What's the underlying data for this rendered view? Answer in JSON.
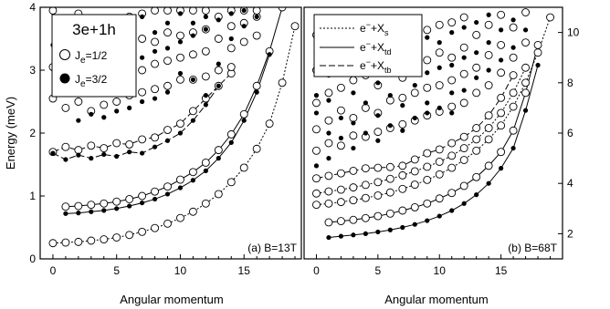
{
  "figure": {
    "ylabel": "Energy (meV)",
    "legend_title": "3e+1h"
  },
  "chart_data": [
    {
      "type": "scatter",
      "annotation": "(a) B=13T",
      "xlabel": "Angular momentum",
      "ylabel": "Energy (meV)",
      "xlim": [
        -1,
        19.5
      ],
      "ylim": [
        0,
        4
      ],
      "xticks": [
        "0",
        "5",
        "10",
        "15"
      ],
      "yticks": [
        "0",
        "1",
        "2",
        "3",
        "4"
      ],
      "legend": {
        "title": "3e+1h",
        "entries": [
          {
            "label": "J",
            "sub": "e",
            "suffix": "=1/2",
            "marker": "open"
          },
          {
            "label": "J",
            "sub": "e",
            "suffix": "=3/2",
            "marker": "filled"
          }
        ]
      },
      "series": [
        {
          "style": "dashed",
          "marker": "open",
          "x": [
            0,
            1,
            2,
            3,
            4,
            5,
            6,
            7,
            8,
            9,
            10,
            11,
            12,
            13,
            14,
            15,
            16,
            17,
            18,
            19
          ],
          "y": [
            0.25,
            0.26,
            0.27,
            0.29,
            0.31,
            0.34,
            0.38,
            0.43,
            0.49,
            0.56,
            0.65,
            0.75,
            0.88,
            1.03,
            1.22,
            1.45,
            1.75,
            2.15,
            2.8,
            3.7
          ]
        },
        {
          "style": "solid",
          "marker": "open",
          "x": [
            1,
            2,
            3,
            4,
            5,
            6,
            7,
            8,
            9,
            10,
            11,
            12,
            13,
            14,
            15,
            16,
            17,
            18
          ],
          "y": [
            0.83,
            0.84,
            0.86,
            0.88,
            0.91,
            0.95,
            1.0,
            1.07,
            1.15,
            1.26,
            1.38,
            1.53,
            1.73,
            1.98,
            2.3,
            2.75,
            3.3,
            4.0
          ]
        },
        {
          "style": "solid",
          "marker": "filled",
          "x": [
            1,
            2,
            3,
            4,
            5,
            6,
            7,
            8,
            9,
            10,
            11,
            12,
            13,
            14,
            15,
            16,
            17
          ],
          "y": [
            0.72,
            0.73,
            0.75,
            0.77,
            0.8,
            0.84,
            0.89,
            0.95,
            1.03,
            1.13,
            1.25,
            1.4,
            1.6,
            1.85,
            2.2,
            2.65,
            3.25
          ]
        },
        {
          "style": "longdash",
          "marker": "open",
          "x": [
            0,
            1,
            2,
            3,
            4,
            5,
            6,
            7,
            8,
            9,
            10,
            11,
            12,
            13,
            14
          ],
          "y": [
            1.7,
            1.78,
            1.73,
            1.8,
            1.76,
            1.84,
            1.82,
            1.9,
            1.93,
            2.05,
            2.15,
            2.35,
            2.55,
            2.75,
            2.95
          ]
        },
        {
          "style": "longdash",
          "marker": "filled",
          "x": [
            0,
            1,
            2,
            3,
            4,
            5,
            6,
            7,
            8,
            9,
            10,
            11,
            12,
            13
          ],
          "y": [
            1.68,
            1.58,
            1.65,
            1.6,
            1.66,
            1.63,
            1.7,
            1.68,
            1.78,
            1.88,
            2.0,
            2.2,
            2.45,
            2.75
          ]
        },
        {
          "style": "none",
          "marker": "open",
          "x": [
            0,
            0,
            0,
            1,
            1,
            1,
            1,
            2,
            2,
            2,
            2,
            3,
            3,
            3,
            3,
            4,
            4,
            4,
            4,
            5,
            5,
            5,
            5,
            6,
            6,
            6,
            6,
            7,
            7,
            7,
            7,
            8,
            8,
            8,
            8,
            9,
            9,
            9,
            9,
            10,
            10,
            10,
            10,
            11,
            11,
            11,
            11,
            12,
            12,
            12,
            12,
            13,
            13,
            13,
            14,
            14,
            14,
            14,
            15,
            15,
            15,
            16,
            16,
            16
          ],
          "y": [
            2.55,
            3.05,
            3.95,
            2.4,
            2.85,
            3.25,
            3.7,
            2.5,
            2.95,
            3.45,
            3.9,
            2.35,
            2.75,
            3.2,
            3.6,
            2.45,
            2.9,
            3.35,
            3.8,
            2.5,
            2.8,
            3.2,
            3.7,
            2.6,
            2.95,
            3.3,
            3.85,
            2.65,
            3.0,
            3.5,
            3.9,
            2.7,
            3.1,
            3.45,
            3.95,
            2.75,
            3.15,
            3.6,
            3.95,
            2.85,
            3.2,
            3.55,
            3.95,
            2.85,
            3.25,
            3.6,
            3.95,
            2.9,
            3.3,
            3.65,
            3.95,
            3.0,
            3.5,
            3.85,
            3.05,
            3.35,
            3.7,
            3.95,
            3.45,
            3.75,
            3.95,
            3.55,
            3.85,
            3.95
          ]
        },
        {
          "style": "none",
          "marker": "filled",
          "x": [
            0,
            1,
            1,
            2,
            2,
            2,
            3,
            3,
            3,
            4,
            4,
            4,
            5,
            5,
            5,
            6,
            6,
            6,
            7,
            7,
            7,
            8,
            8,
            8,
            9,
            9,
            9,
            10,
            10,
            10,
            11,
            11,
            11,
            12,
            12,
            12,
            13,
            13,
            14,
            14,
            15,
            15,
            16
          ],
          "y": [
            3.4,
            2.75,
            3.6,
            2.2,
            2.85,
            3.65,
            2.3,
            2.7,
            3.75,
            2.25,
            3.05,
            3.75,
            2.35,
            2.95,
            3.85,
            2.4,
            3.1,
            3.7,
            2.5,
            3.2,
            3.85,
            2.55,
            3.3,
            3.6,
            2.65,
            3.35,
            3.75,
            2.95,
            3.45,
            3.9,
            2.85,
            3.55,
            3.75,
            2.6,
            3.65,
            3.85,
            3.1,
            3.8,
            3.5,
            3.9,
            3.7,
            3.95,
            3.85
          ]
        }
      ]
    },
    {
      "type": "scatter",
      "annotation": "(b) B=68T",
      "xlabel": "Angular momentum",
      "xlim": [
        -1,
        20
      ],
      "ylim": [
        1,
        11
      ],
      "xticks": [
        "0",
        "5",
        "10",
        "15"
      ],
      "yticks": [
        "2",
        "4",
        "6",
        "8",
        "10"
      ],
      "legend": {
        "entries": [
          {
            "style": "dashed",
            "label": "e",
            "sup": "−",
            "mid": "+X",
            "sub": "s"
          },
          {
            "style": "solid",
            "label": "e",
            "sup": "−",
            "mid": "+X",
            "sub": "td"
          },
          {
            "style": "longdash",
            "label": "e",
            "sup": "−",
            "mid": "+X",
            "sub": "tb"
          }
        ]
      },
      "series": [
        {
          "style": "solid",
          "marker": "filled",
          "x": [
            1,
            2,
            3,
            4,
            5,
            6,
            7,
            8,
            9,
            10,
            11,
            12,
            13,
            14,
            15,
            16,
            17,
            18
          ],
          "y": [
            1.85,
            1.9,
            1.95,
            2.0,
            2.07,
            2.15,
            2.25,
            2.37,
            2.52,
            2.7,
            2.92,
            3.2,
            3.55,
            4.0,
            4.6,
            5.4,
            6.9,
            8.7
          ]
        },
        {
          "style": "solid",
          "marker": "open",
          "x": [
            1,
            2,
            3,
            4,
            5,
            6,
            7,
            8,
            9,
            10,
            11,
            12,
            13,
            14,
            15,
            16,
            17,
            18
          ],
          "y": [
            2.45,
            2.5,
            2.55,
            2.62,
            2.7,
            2.8,
            2.92,
            3.05,
            3.2,
            3.4,
            3.62,
            3.9,
            4.25,
            4.7,
            5.25,
            6.1,
            7.6,
            9.5
          ]
        },
        {
          "style": "dashed",
          "marker": "open",
          "x": [
            0,
            1,
            2,
            3,
            4,
            5,
            6,
            7,
            8,
            9,
            10,
            11,
            12,
            13,
            14,
            15,
            16,
            17,
            18,
            19
          ],
          "y": [
            3.15,
            3.2,
            3.26,
            3.33,
            3.42,
            3.52,
            3.64,
            3.78,
            3.95,
            4.14,
            4.36,
            4.62,
            4.93,
            5.3,
            5.75,
            6.3,
            7.05,
            8.0,
            9.2,
            10.6
          ]
        },
        {
          "style": "dashed",
          "marker": "open",
          "x": [
            0,
            1,
            2,
            3,
            4,
            5,
            6,
            7,
            8,
            9,
            10,
            11,
            12,
            13,
            14,
            15,
            16,
            17
          ],
          "y": [
            3.6,
            3.68,
            3.75,
            3.84,
            3.94,
            4.05,
            4.18,
            4.32,
            4.48,
            4.66,
            4.86,
            5.1,
            5.4,
            5.75,
            6.2,
            6.8,
            7.6,
            8.6
          ]
        },
        {
          "style": "longdash",
          "marker": "open",
          "x": [
            0,
            1,
            2,
            3,
            4,
            5,
            6,
            7,
            8,
            9,
            10,
            11,
            12,
            13,
            14,
            15,
            16
          ],
          "y": [
            4.2,
            4.3,
            4.4,
            4.5,
            4.6,
            4.62,
            4.65,
            4.7,
            4.95,
            5.2,
            5.35,
            5.6,
            5.85,
            6.2,
            6.7,
            7.4,
            8.3
          ]
        },
        {
          "style": "none",
          "marker": "open",
          "x": [
            0,
            0,
            0,
            0,
            0,
            1,
            1,
            1,
            1,
            1,
            2,
            2,
            2,
            2,
            3,
            3,
            3,
            3,
            4,
            4,
            4,
            4,
            5,
            5,
            5,
            5,
            6,
            6,
            6,
            6,
            7,
            7,
            7,
            7,
            8,
            8,
            8,
            8,
            9,
            9,
            9,
            9,
            10,
            10,
            10,
            10,
            11,
            11,
            11,
            11,
            12,
            12,
            12,
            12,
            13,
            13,
            13,
            14,
            14,
            14,
            15,
            15,
            15,
            16,
            16,
            17,
            17
          ],
          "y": [
            5.3,
            6.15,
            7.2,
            8.5,
            9.9,
            5.6,
            6.5,
            7.6,
            8.8,
            10.0,
            5.5,
            6.9,
            7.8,
            9.5,
            5.9,
            6.6,
            8.1,
            9.3,
            5.85,
            7.0,
            8.3,
            9.6,
            6.05,
            6.8,
            7.9,
            9.4,
            6.2,
            7.3,
            8.5,
            9.8,
            6.35,
            7.4,
            8.2,
            9.6,
            6.5,
            7.6,
            8.7,
            10.0,
            6.7,
            7.8,
            8.9,
            10.1,
            6.85,
            7.9,
            9.2,
            10.3,
            7.05,
            8.1,
            9.0,
            10.4,
            7.2,
            8.35,
            9.4,
            10.6,
            7.6,
            8.6,
            9.9,
            7.9,
            9.1,
            10.3,
            8.4,
            9.5,
            10.7,
            9.0,
            10.2,
            9.6,
            10.8
          ]
        },
        {
          "style": "none",
          "marker": "filled",
          "x": [
            0,
            0,
            0,
            1,
            1,
            1,
            1,
            2,
            2,
            2,
            3,
            3,
            3,
            3,
            4,
            4,
            4,
            5,
            5,
            5,
            5,
            6,
            6,
            6,
            7,
            7,
            7,
            7,
            8,
            8,
            8,
            9,
            9,
            9,
            9,
            10,
            10,
            10,
            11,
            11,
            11,
            11,
            12,
            12,
            12,
            13,
            13,
            13,
            14,
            14,
            14,
            15,
            15,
            16,
            16,
            17
          ],
          "y": [
            4.7,
            6.8,
            7.5,
            5.0,
            6.0,
            7.3,
            8.3,
            5.8,
            6.6,
            8.6,
            5.4,
            6.4,
            7.6,
            9.3,
            6.0,
            7.2,
            8.8,
            5.7,
            6.7,
            8.0,
            9.2,
            6.3,
            7.5,
            8.9,
            6.1,
            7.1,
            8.5,
            9.6,
            6.6,
            7.9,
            9.3,
            6.8,
            7.2,
            8.4,
            9.8,
            7.0,
            8.6,
            9.6,
            6.8,
            7.6,
            8.7,
            10.0,
            7.7,
            9.0,
            10.2,
            8.2,
            9.2,
            10.4,
            8.5,
            9.6,
            10.7,
            8.9,
            10.1,
            9.4,
            10.5,
            10.1
          ]
        }
      ]
    }
  ]
}
